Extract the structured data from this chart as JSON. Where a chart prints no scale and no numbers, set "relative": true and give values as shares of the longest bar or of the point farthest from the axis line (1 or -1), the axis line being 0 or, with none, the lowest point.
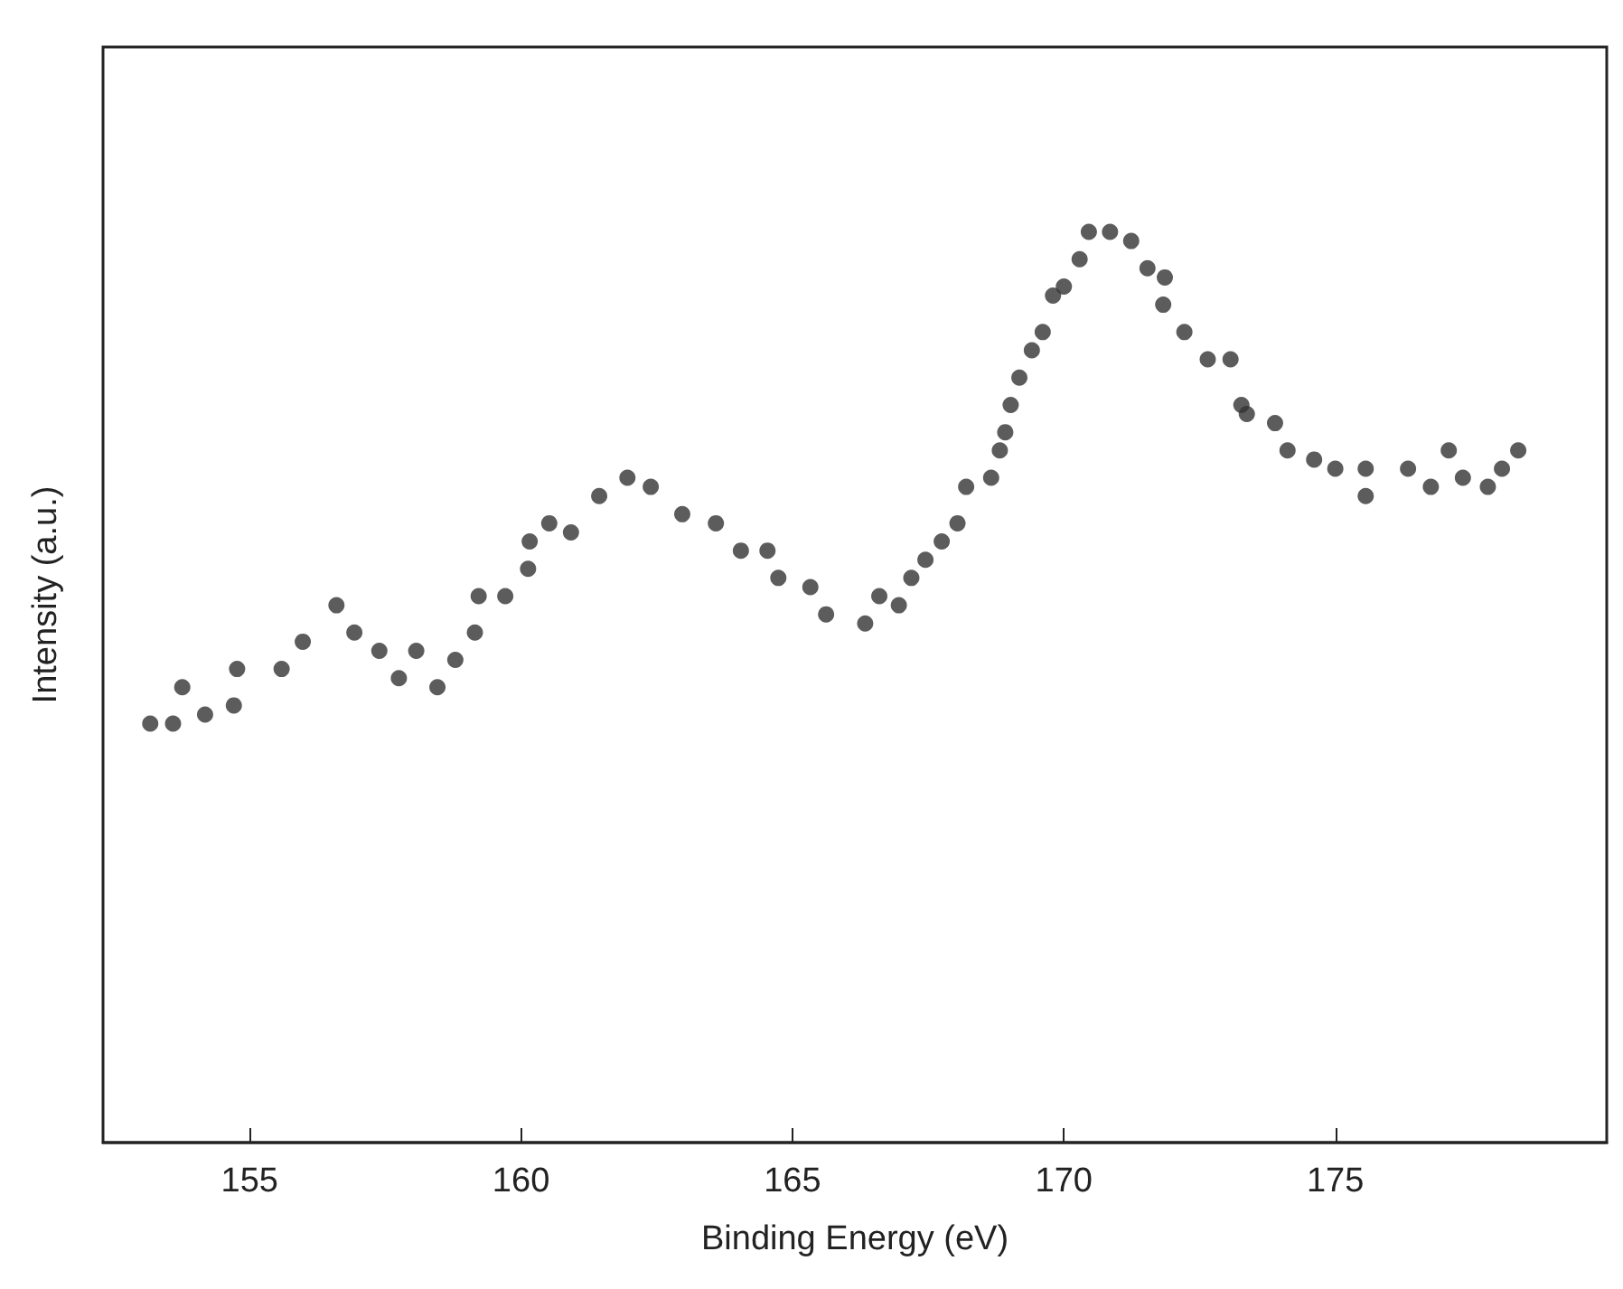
{
  "chart_data": {
    "type": "scatter",
    "xlabel": "Binding Energy (eV)",
    "ylabel": "Intensity (a.u.)",
    "relative": true,
    "marker": "circle",
    "grid": false,
    "xlim": [
      152.3,
      180
    ],
    "xticks": [
      155,
      160,
      165,
      170,
      175
    ],
    "series": [
      {
        "color": "#333333",
        "x": [
          153.17,
          153.59,
          153.76,
          154.18,
          154.71,
          154.77,
          155.59,
          155.98,
          156.6,
          156.93,
          157.39,
          157.75,
          158.07,
          158.46,
          158.79,
          159.15,
          159.22,
          159.71,
          160.13,
          160.16,
          160.52,
          160.92,
          161.44,
          161.96,
          162.39,
          162.97,
          163.59,
          164.05,
          164.54,
          164.74,
          165.33,
          165.62,
          166.34,
          166.6,
          166.96,
          167.19,
          167.45,
          167.75,
          168.04,
          168.2,
          168.66,
          168.82,
          168.92,
          169.02,
          169.18,
          169.41,
          169.61,
          169.8,
          170.0,
          170.29,
          170.46,
          170.85,
          171.24,
          171.54,
          171.86,
          171.83,
          172.22,
          172.65,
          173.07,
          173.27,
          173.37,
          173.89,
          174.12,
          174.61,
          175.0,
          175.56,
          175.56,
          176.34,
          176.76,
          177.09,
          177.35,
          177.81,
          178.07,
          178.37
        ],
        "values": [
          0.46,
          0.46,
          0.5,
          0.47,
          0.48,
          0.52,
          0.52,
          0.55,
          0.59,
          0.56,
          0.54,
          0.51,
          0.54,
          0.5,
          0.53,
          0.56,
          0.6,
          0.6,
          0.63,
          0.66,
          0.68,
          0.67,
          0.71,
          0.73,
          0.72,
          0.69,
          0.68,
          0.65,
          0.65,
          0.62,
          0.61,
          0.58,
          0.57,
          0.6,
          0.59,
          0.62,
          0.64,
          0.66,
          0.68,
          0.72,
          0.73,
          0.76,
          0.78,
          0.81,
          0.84,
          0.87,
          0.89,
          0.93,
          0.94,
          0.97,
          1,
          1.0,
          0.99,
          0.96,
          0.95,
          0.92,
          0.89,
          0.86,
          0.86,
          0.81,
          0.8,
          0.79,
          0.76,
          0.75,
          0.74,
          0.74,
          0.71,
          0.74,
          0.72,
          0.76,
          0.73,
          0.72,
          0.74,
          0.76
        ]
      }
    ]
  }
}
